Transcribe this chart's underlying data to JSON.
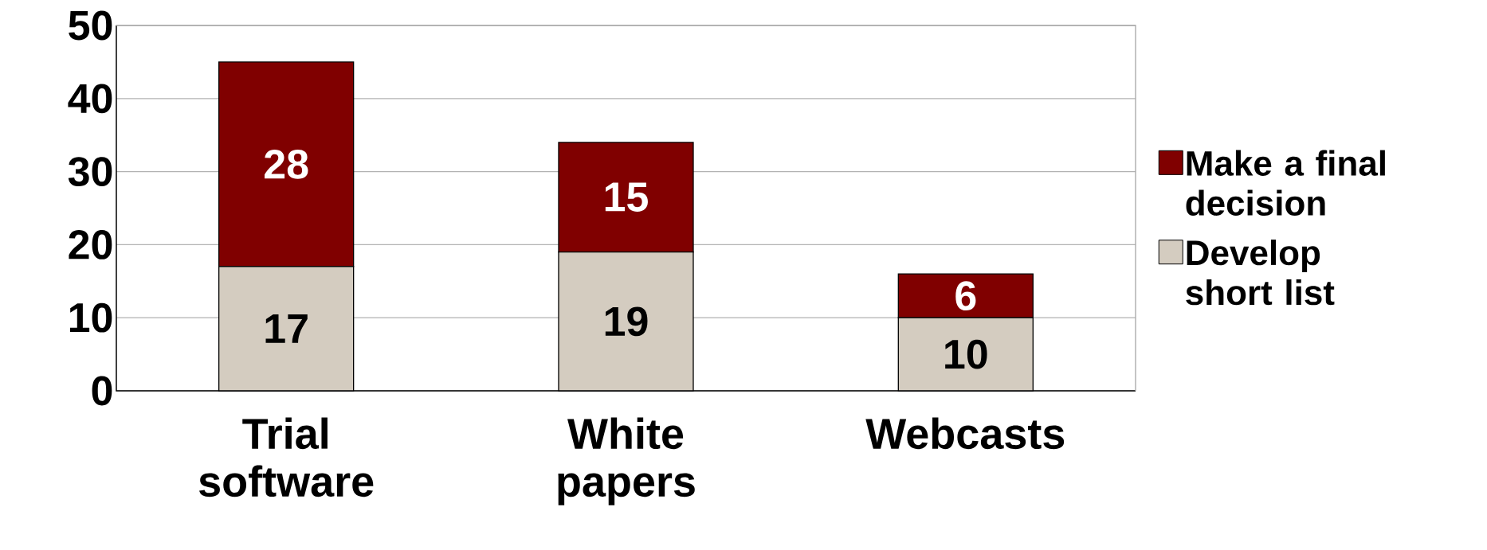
{
  "chart_data": {
    "type": "bar",
    "stacked": true,
    "categories": [
      "Trial software",
      "White papers",
      "Webcasts"
    ],
    "series": [
      {
        "name": "Develop short list",
        "color": "#d4ccc0",
        "values": [
          17,
          19,
          10
        ]
      },
      {
        "name": "Make a final decision",
        "color": "#800000",
        "values": [
          28,
          15,
          6
        ]
      }
    ],
    "ylim": [
      0,
      50
    ],
    "yticks": [
      0,
      10,
      20,
      30,
      40,
      50
    ],
    "grid": "y",
    "legend": "right",
    "data_labels": true
  }
}
